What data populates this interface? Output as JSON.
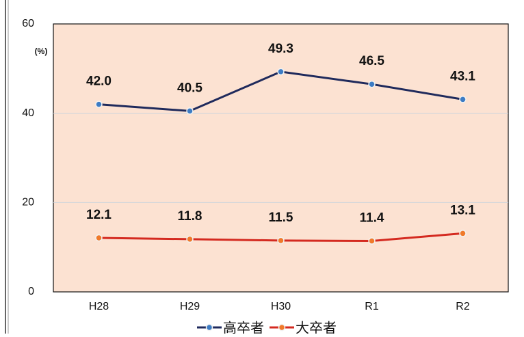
{
  "chart_data": {
    "type": "line",
    "y_label": "(%)",
    "categories": [
      "H28",
      "H29",
      "H30",
      "R1",
      "R2"
    ],
    "series": [
      {
        "name": "高卒者",
        "color": "#1f2a5c",
        "marker_color": "#3d7cc4",
        "values": [
          42.0,
          40.5,
          49.3,
          46.5,
          43.1
        ],
        "value_labels": [
          "42.0",
          "40.5",
          "49.3",
          "46.5",
          "43.1"
        ]
      },
      {
        "name": "大卒者",
        "color": "#d42a20",
        "marker_color": "#f07a2a",
        "values": [
          12.1,
          11.8,
          11.5,
          11.4,
          13.1
        ],
        "value_labels": [
          "12.1",
          "11.8",
          "11.5",
          "11.4",
          "13.1"
        ]
      }
    ],
    "ylim": [
      0,
      60
    ],
    "yticks": [
      0,
      20,
      40,
      60
    ],
    "grid": true,
    "legend": "bottom"
  }
}
